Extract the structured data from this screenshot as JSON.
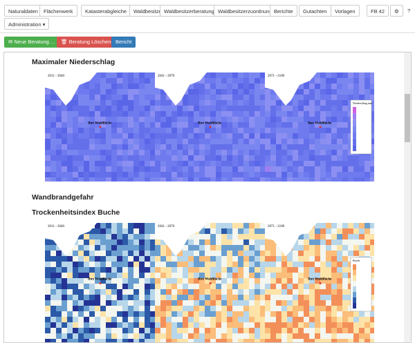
{
  "toolbar": {
    "menu": [
      "Naturaldaten",
      "Flächenwerk",
      "Katasterabgleiche",
      "Waldbesitzer",
      "Waldbesitzerberatung",
      "Waldbesitzerzuordnung",
      "Berichte",
      "Gutachten",
      "Vorlagen"
    ],
    "user": "FB 42",
    "help": "?",
    "admin": "Administration"
  },
  "actions": {
    "new": "Neue Beratung ...",
    "delete": "Beratung Löschen ...",
    "report": "Bericht"
  },
  "sections": [
    {
      "title": "Maximaler Niederschlag",
      "periods": [
        "2011 - 2040",
        "2041 - 2070",
        "2071 - 2100"
      ],
      "marker": "Ihre Waldfläche",
      "legend": "Niederschlag mm"
    },
    {
      "title": "Wandbrandgefahr"
    },
    {
      "title": "Trockenheitsindex Buche",
      "periods": [
        "2011 - 2040",
        "2041 - 2070",
        "2071 - 2100"
      ],
      "marker": "Ihre Waldfläche",
      "legend": "Buche"
    }
  ]
}
